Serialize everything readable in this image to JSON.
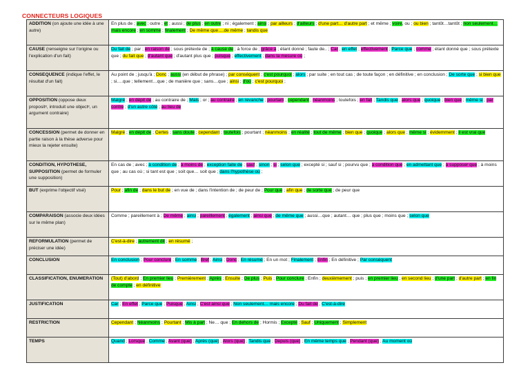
{
  "title": "CONNECTEURS LOGIQUES",
  "colors": {
    "title": "#e4231b",
    "category_bg": "#e6e2d8",
    "yellow": "#fff200",
    "green": "#22ee22",
    "cyan": "#00f0f0",
    "magenta": "#ee33cc"
  },
  "rows": [
    {
      "name": "ADDITION",
      "desc": " (on ajoute une idée à une autre)",
      "h": 37,
      "segments": [
        [
          "En plus de ; ",
          ""
        ],
        [
          "avec",
          "g"
        ],
        [
          " ; outre ; ",
          ""
        ],
        [
          "et",
          "g"
        ],
        [
          " ; aussi ; ",
          ""
        ],
        [
          "de plus",
          "g"
        ],
        [
          " ; ",
          ""
        ],
        [
          "en outre",
          "g"
        ],
        [
          " ; ni ; également ; ",
          ""
        ],
        [
          "ainsi",
          "g"
        ],
        [
          " ; ",
          ""
        ],
        [
          "par ailleurs",
          "y"
        ],
        [
          " ; ",
          ""
        ],
        [
          "d'ailleurs",
          "g"
        ],
        [
          " ; ",
          ""
        ],
        [
          "d'une part… d'autre part",
          "y"
        ],
        [
          " ; et même ; ",
          ""
        ],
        [
          "voire",
          "g"
        ],
        [
          ", ou ; ",
          ""
        ],
        [
          "ou bien",
          "y"
        ],
        [
          " ; tantôt…tantôt ; ",
          ""
        ],
        [
          "non seulement…mais encore",
          "g"
        ],
        [
          " ; ",
          ""
        ],
        [
          "en somme",
          "g"
        ],
        [
          " ; ",
          ""
        ],
        [
          "finalement",
          "g"
        ],
        [
          " ; ",
          ""
        ],
        [
          "De même que….de même",
          "y"
        ],
        [
          " ; ",
          ""
        ],
        [
          "tandis que",
          "y"
        ]
      ]
    },
    {
      "name": "CAUSE",
      "desc": " (renseigne sur l'origine ou l'explication d'un fait)",
      "h": 37,
      "segments": [
        [
          "Du fait de",
          "c"
        ],
        [
          " ; par ; ",
          ""
        ],
        [
          "en raison de",
          "m"
        ],
        [
          " ; sous prétexte de ; ",
          ""
        ],
        [
          "à cause de",
          "g"
        ],
        [
          " ; à force de ; ",
          ""
        ],
        [
          "grâce à",
          "m"
        ],
        [
          " ; étant donné ; faute de.. ; ",
          ""
        ],
        [
          "Car",
          "m"
        ],
        [
          " ; ",
          ""
        ],
        [
          "en effet",
          "c"
        ],
        [
          " ; ",
          ""
        ],
        [
          "effectivement",
          "m"
        ],
        [
          " ; ",
          ""
        ],
        [
          "Parce que",
          "c"
        ],
        [
          " ; ",
          ""
        ],
        [
          "comme",
          "m"
        ],
        [
          " ; étant donné que ; sous prétexte que ; ",
          ""
        ],
        [
          "du fait que",
          "y"
        ],
        [
          " ; ",
          ""
        ],
        [
          "d'autant que",
          "m"
        ],
        [
          " ; d'autant plus que ; ",
          ""
        ],
        [
          "puisque",
          "m"
        ],
        [
          " ; ",
          ""
        ],
        [
          "effectivement",
          "c"
        ],
        [
          " ; ",
          ""
        ],
        [
          "dans la mesure où",
          "m"
        ],
        [
          " ;",
          ""
        ]
      ]
    },
    {
      "name": "CONSEQUENCE",
      "desc": " (indique l'effet, le résultat d'un fait)",
      "h": 37,
      "segments": [
        [
          "Au point de ; jusqu'à ; ",
          ""
        ],
        [
          "Donc",
          "y"
        ],
        [
          " ; ",
          ""
        ],
        [
          "aussi",
          "g"
        ],
        [
          " (en début de phrase) ; ",
          ""
        ],
        [
          "par conséquent",
          "y"
        ],
        [
          " ; ",
          ""
        ],
        [
          "c'est pourquoi",
          "g"
        ],
        [
          " ; ",
          ""
        ],
        [
          "alors",
          "c"
        ],
        [
          " ; par suite ; en tout cas ; de toute façon ; en définitive ; en conclusion ; ",
          ""
        ],
        [
          "De sorte que",
          "c"
        ],
        [
          " ; ",
          ""
        ],
        [
          "si bien que",
          "y"
        ],
        [
          " ; si….que ; tellement…que ; de manière que ; sans…que ; ",
          ""
        ],
        [
          "ainsi",
          "y"
        ],
        [
          " ; ",
          ""
        ],
        [
          "d'où",
          "g"
        ],
        [
          " ; ",
          ""
        ],
        [
          "c'est pourquoi",
          "y"
        ],
        [
          " ;",
          ""
        ]
      ]
    },
    {
      "name": "OPPOSITION",
      "desc": " (oppose deux propositᵉ, introduit une objectᵉ, un argument contraire)",
      "h": 47,
      "segments": [
        [
          "Malgré",
          "c"
        ],
        [
          " ; ",
          ""
        ],
        [
          "en dépit de",
          "m"
        ],
        [
          " ; au contraire de ; ",
          ""
        ],
        [
          "Mais",
          "c"
        ],
        [
          " ; or ; ",
          ""
        ],
        [
          "au contraire",
          "m"
        ],
        [
          " ; ",
          ""
        ],
        [
          "en revanche",
          "c"
        ],
        [
          " ; ",
          ""
        ],
        [
          "pourtant",
          "m"
        ],
        [
          " ; ",
          ""
        ],
        [
          "cependant",
          "g"
        ],
        [
          " ; ",
          ""
        ],
        [
          "néanmoins",
          "m"
        ],
        [
          " ; toutefois ; ",
          ""
        ],
        [
          "en fait",
          "m"
        ],
        [
          " ; ",
          ""
        ],
        [
          "Tandis que",
          "c"
        ],
        [
          " ; ",
          ""
        ],
        [
          "alors que",
          "m"
        ],
        [
          " ; ",
          ""
        ],
        [
          "quoique",
          "c"
        ],
        [
          " ; ",
          ""
        ],
        [
          "bien que",
          "m"
        ],
        [
          " ; ",
          ""
        ],
        [
          "même si",
          "c"
        ],
        [
          " ; ",
          ""
        ],
        [
          "par contre",
          "m"
        ],
        [
          " ; ",
          ""
        ],
        [
          "d'un autre côté",
          "c"
        ],
        [
          " ; ",
          ""
        ],
        [
          "au lieu de",
          "m"
        ]
      ]
    },
    {
      "name": "CONCESSION",
      "desc": " (permet de donner en partie raison à la thèse adverse pour mieux la rejeter ensuite)",
      "h": 47,
      "segments": [
        [
          "Malgré",
          "y"
        ],
        [
          " ; ",
          ""
        ],
        [
          "en dépit de",
          "g"
        ],
        [
          " ; ",
          ""
        ],
        [
          "Certes",
          "y"
        ],
        [
          " ; ",
          ""
        ],
        [
          "sans doute",
          "g"
        ],
        [
          " ; ",
          ""
        ],
        [
          "cependant",
          "y"
        ],
        [
          " ; ",
          ""
        ],
        [
          "toutefois",
          "g"
        ],
        [
          " ; pourtant ; ",
          ""
        ],
        [
          "néanmoins",
          "y"
        ],
        [
          " ; ",
          ""
        ],
        [
          "en réalité",
          "g"
        ],
        [
          " ; ",
          ""
        ],
        [
          "tout de même",
          "g"
        ],
        [
          " ; ",
          ""
        ],
        [
          "bien que",
          "y"
        ],
        [
          " ; ",
          ""
        ],
        [
          "quoique",
          "g"
        ],
        [
          " ; ",
          ""
        ],
        [
          "alors que",
          "y"
        ],
        [
          " ; ",
          ""
        ],
        [
          "même si",
          "g"
        ],
        [
          " ; ",
          ""
        ],
        [
          "évidemment",
          "y"
        ],
        [
          " ; ",
          ""
        ],
        [
          "il est vrai que",
          "g"
        ]
      ]
    },
    {
      "name": "CONDITION, HYPOTHESE, SUPPOSITION",
      "desc": " (permet de formuler une supposition)",
      "h": 37,
      "segments": [
        [
          "En cas de ; avec ; ",
          ""
        ],
        [
          "à condition de",
          "c"
        ],
        [
          " ; ",
          ""
        ],
        [
          "à moins de",
          "m"
        ],
        [
          " ; ",
          ""
        ],
        [
          "exception faite de",
          "c"
        ],
        [
          " ; ",
          ""
        ],
        [
          "sauf",
          "m"
        ],
        [
          " ; ",
          ""
        ],
        [
          "sinon",
          "c"
        ],
        [
          " ; ",
          ""
        ],
        [
          "si",
          "m"
        ],
        [
          " ; ",
          ""
        ],
        [
          "selon que",
          "c"
        ],
        [
          " ; excepté si ; sauf si ; pourvu que ; ",
          ""
        ],
        [
          "à condition que",
          "m"
        ],
        [
          " ; ",
          ""
        ],
        [
          "en admettant que",
          "c"
        ],
        [
          " ; ",
          ""
        ],
        [
          "à supposer que",
          "m"
        ],
        [
          " ; à moins que ; au cas où ; si tant est que ; soit que… soit que ; ",
          ""
        ],
        [
          "dans l'hypothèse où",
          "c"
        ],
        [
          " ;",
          ""
        ]
      ]
    },
    {
      "name": "BUT",
      "desc": " (exprime l'objectif visé)",
      "h": 37,
      "segments": [
        [
          "Pour",
          "y"
        ],
        [
          " ; ",
          ""
        ],
        [
          "afin de",
          "g"
        ],
        [
          " ; ",
          ""
        ],
        [
          "dans le but de",
          "y"
        ],
        [
          " ; en vue de ; dans l'intention de ; de peur de ; ",
          ""
        ],
        [
          "Pour que",
          "g"
        ],
        [
          " ; ",
          ""
        ],
        [
          "afin que",
          "y"
        ],
        [
          " ; ",
          ""
        ],
        [
          "de sorte que",
          "g"
        ],
        [
          " ; de peur que",
          ""
        ]
      ]
    },
    {
      "name": "COMPARAISON",
      "desc": " (associe deux idées sur le même plan)",
      "h": 37,
      "segments": [
        [
          "Comme ; pareillement à ; ",
          ""
        ],
        [
          "De même",
          "m"
        ],
        [
          " ; ",
          ""
        ],
        [
          "ainsi",
          "c"
        ],
        [
          " ; ",
          ""
        ],
        [
          "pareillement",
          "m"
        ],
        [
          " ; ",
          ""
        ],
        [
          "également",
          "c"
        ],
        [
          " ; ",
          ""
        ],
        [
          "ainsi que",
          "m"
        ],
        [
          " ; ",
          ""
        ],
        [
          "de même que",
          "c"
        ],
        [
          " ; aussi…que ; autant… que ; plus que ; moins que ; ",
          ""
        ],
        [
          "selon que",
          "c"
        ]
      ]
    },
    {
      "name": "REFORMULATION",
      "desc": " (permet de préciser une idée)",
      "h": 27,
      "segments": [
        [
          "C'est-à-dire",
          "y"
        ],
        [
          " ; ",
          ""
        ],
        [
          "autrement dit",
          "g"
        ],
        [
          " ; ",
          ""
        ],
        [
          "en résumé",
          "y"
        ],
        [
          " ;",
          ""
        ]
      ]
    },
    {
      "name": "CONCLUSION",
      "desc": "",
      "h": 27,
      "segments": [
        [
          "En conclusion",
          "c"
        ],
        [
          " ; ",
          ""
        ],
        [
          "Pour conclure",
          "m"
        ],
        [
          " ; ",
          ""
        ],
        [
          "En somme",
          "c"
        ],
        [
          " ; ",
          ""
        ],
        [
          "Bref",
          "m"
        ],
        [
          " ; ",
          ""
        ],
        [
          "Ainsi",
          "c"
        ],
        [
          " ; ",
          ""
        ],
        [
          "Donc",
          "m"
        ],
        [
          " ; ",
          ""
        ],
        [
          "En résumé",
          "c"
        ],
        [
          " ; En un mot ; ",
          ""
        ],
        [
          "Finalement",
          "c"
        ],
        [
          " ; ",
          ""
        ],
        [
          "Enfin",
          "m"
        ],
        [
          " ; En définitive ; ",
          ""
        ],
        [
          "Par conséquent",
          "c"
        ]
      ]
    },
    {
      "name": "CLASSIFICATION, ENUMERATION",
      "desc": "",
      "h": 37,
      "segments": [
        [
          "(Tout) d'abord",
          "y"
        ],
        [
          " ; ",
          ""
        ],
        [
          "En premier lieu",
          "g"
        ],
        [
          " ; ",
          ""
        ],
        [
          "Premièrement",
          "y"
        ],
        [
          " ; ",
          ""
        ],
        [
          "Après",
          "g"
        ],
        [
          " ; ",
          ""
        ],
        [
          "Ensuite",
          "y"
        ],
        [
          " ; ",
          ""
        ],
        [
          "De plus",
          "g"
        ],
        [
          " ; ",
          ""
        ],
        [
          "Puis",
          "y"
        ],
        [
          " ; ",
          ""
        ],
        [
          "Pour conclure",
          "g"
        ],
        [
          " ; Enfin ; ",
          ""
        ],
        [
          "deuxièmement",
          "y"
        ],
        [
          " ; puis ; ",
          ""
        ],
        [
          "en premier lieu",
          "g"
        ],
        [
          " ; ",
          ""
        ],
        [
          "en second lieu",
          "y"
        ],
        [
          " ; ",
          ""
        ],
        [
          "d'une part",
          "g"
        ],
        [
          " ; ",
          ""
        ],
        [
          "d'autre part",
          "y"
        ],
        [
          " ; ",
          ""
        ],
        [
          "en fin de compte",
          "g"
        ],
        [
          " ; ",
          ""
        ],
        [
          "en définitive",
          "y"
        ]
      ]
    },
    {
      "name": "JUSTIFICATION",
      "desc": "",
      "h": 27,
      "segments": [
        [
          "Car",
          "c"
        ],
        [
          " ; ",
          ""
        ],
        [
          "En effet",
          "m"
        ],
        [
          " ; ",
          ""
        ],
        [
          "Parce que",
          "c"
        ],
        [
          " ; ",
          ""
        ],
        [
          "Puisque",
          "m"
        ],
        [
          " ; ",
          ""
        ],
        [
          "Ainsi",
          "c"
        ],
        [
          " ; ",
          ""
        ],
        [
          "C'est ainsi que",
          "m"
        ],
        [
          " ; ",
          ""
        ],
        [
          "Non seulement… mais encore",
          "c"
        ],
        [
          " ; ",
          ""
        ],
        [
          "Du fait de",
          "m"
        ],
        [
          " ; ",
          ""
        ],
        [
          "C'est-à-dire",
          "c"
        ]
      ]
    },
    {
      "name": "RESTRICTION",
      "desc": "",
      "h": 27,
      "segments": [
        [
          "Cependant",
          "y"
        ],
        [
          " ; ",
          ""
        ],
        [
          "Néanmoins",
          "g"
        ],
        [
          " ; ",
          ""
        ],
        [
          "Pourtant",
          "y"
        ],
        [
          " ; ",
          ""
        ],
        [
          "Mis à part",
          "g"
        ],
        [
          " ; Ne… que ; ",
          ""
        ],
        [
          "En dehors de",
          "g"
        ],
        [
          " ; Hormis ; ",
          ""
        ],
        [
          "Excepté",
          "g"
        ],
        [
          " ; ",
          ""
        ],
        [
          "Sauf",
          "y"
        ],
        [
          " ; ",
          ""
        ],
        [
          "Uniquement",
          "g"
        ],
        [
          " ; ",
          ""
        ],
        [
          "Simplement",
          "y"
        ]
      ]
    },
    {
      "name": "TEMPS",
      "desc": "",
      "h": 37,
      "segments": [
        [
          "Quand",
          "c"
        ],
        [
          " ; ",
          ""
        ],
        [
          "Lorsque",
          "m"
        ],
        [
          " ; ",
          ""
        ],
        [
          "Comme",
          "c"
        ],
        [
          " ; ",
          ""
        ],
        [
          "Avant (que)",
          "m"
        ],
        [
          " ; ",
          ""
        ],
        [
          "Après (que)",
          "c"
        ],
        [
          " ; ",
          ""
        ],
        [
          "Alors (que)",
          "m"
        ],
        [
          " ; ",
          ""
        ],
        [
          "Tandis que",
          "c"
        ],
        [
          " ; ",
          ""
        ],
        [
          "Depuis (que)",
          "m"
        ],
        [
          " ; ",
          ""
        ],
        [
          "En même temps que",
          "c"
        ],
        [
          " ; ",
          ""
        ],
        [
          "Pendant (que)",
          "m"
        ],
        [
          " ; ",
          ""
        ],
        [
          "Au moment où",
          "c"
        ]
      ]
    }
  ]
}
